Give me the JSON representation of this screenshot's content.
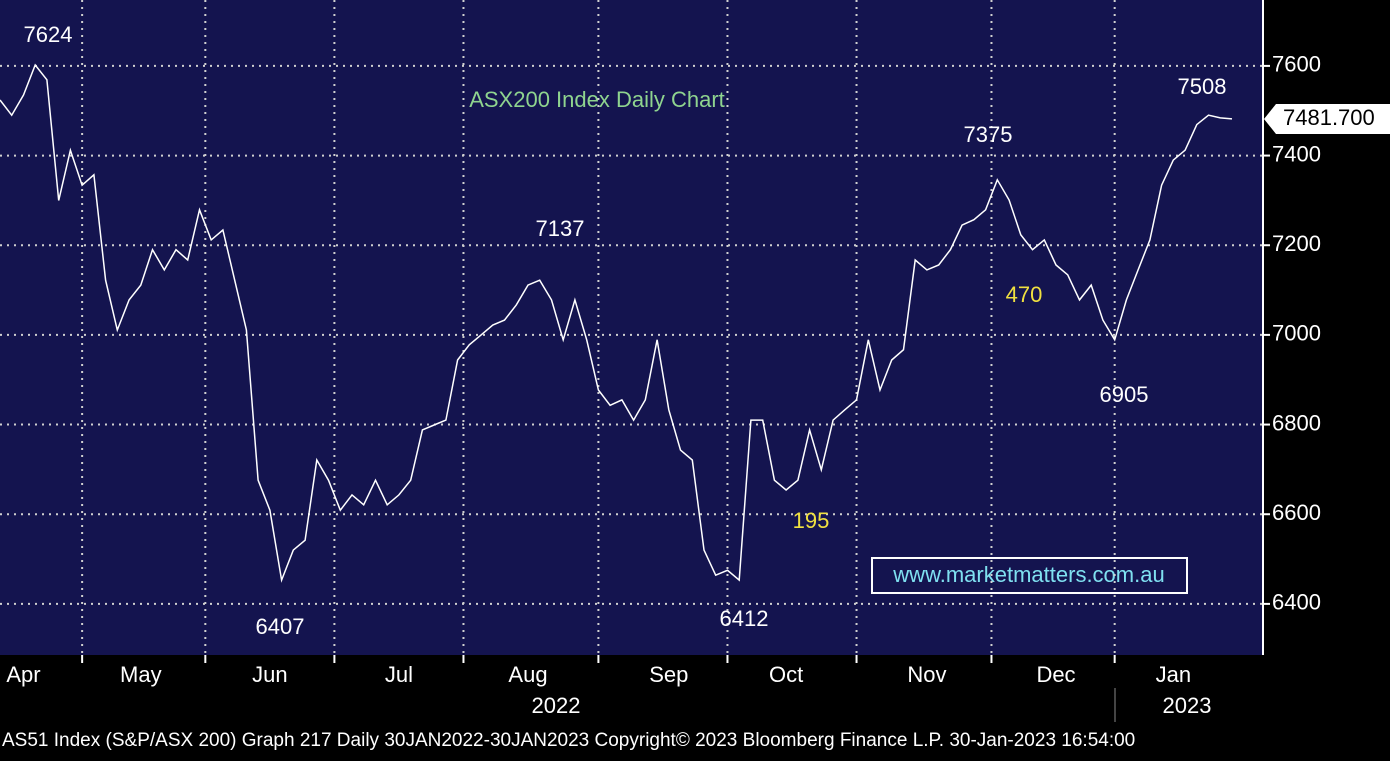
{
  "chart_data": {
    "type": "line",
    "title": "ASX200 Index Daily Chart",
    "categories": [
      null,
      null,
      "Apr",
      null,
      null,
      null,
      null,
      null,
      null,
      null,
      null,
      null,
      "May",
      null,
      null,
      null,
      null,
      null,
      null,
      null,
      null,
      null,
      null,
      "Jun",
      null,
      null,
      null,
      null,
      null,
      null,
      null,
      null,
      null,
      null,
      "Jul",
      null,
      null,
      null,
      null,
      null,
      null,
      null,
      null,
      null,
      null,
      "Aug",
      null,
      null,
      null,
      null,
      null,
      null,
      null,
      null,
      null,
      null,
      null,
      "Sep",
      null,
      null,
      null,
      null,
      null,
      null,
      null,
      null,
      null,
      "Oct",
      null,
      null,
      null,
      null,
      null,
      null,
      null,
      null,
      null,
      null,
      null,
      "Nov",
      null,
      null,
      null,
      null,
      null,
      null,
      null,
      null,
      null,
      null,
      "Dec",
      null,
      null,
      null,
      null,
      null,
      null,
      null,
      null,
      null,
      "Jan",
      null,
      null,
      null,
      null,
      null
    ],
    "series": [
      {
        "name": "AS51 Index",
        "color": "#ffffff",
        "values": [
          7524,
          7490,
          7535,
          7602,
          7569,
          7300,
          7412,
          7334,
          7357,
          7122,
          7011,
          7078,
          7111,
          7190,
          7145,
          7190,
          7167,
          7279,
          7212,
          7234,
          7122,
          7011,
          6676,
          6609,
          6453,
          6520,
          6542,
          6721,
          6676,
          6609,
          6643,
          6621,
          6676,
          6621,
          6643,
          6676,
          6788,
          6799,
          6810,
          6944,
          6978,
          7000,
          7022,
          7033,
          7067,
          7111,
          7122,
          7078,
          6989,
          7078,
          6989,
          6877,
          6843,
          6855,
          6810,
          6855,
          6989,
          6833,
          6743,
          6721,
          6520,
          6464,
          6475,
          6453,
          6810,
          6810,
          6676,
          6654,
          6676,
          6788,
          6699,
          6810,
          6833,
          6855,
          6989,
          6877,
          6944,
          6967,
          7167,
          7145,
          7156,
          7190,
          7245,
          7257,
          7279,
          7346,
          7301,
          7223,
          7190,
          7212,
          7156,
          7134,
          7078,
          7111,
          7033,
          6989,
          7078,
          7145,
          7212,
          7334,
          7390,
          7412,
          7469,
          7490,
          7484,
          7481.7
        ]
      }
    ],
    "ylim": [
      6286,
      7747
    ],
    "yticks": [
      6400,
      6600,
      6800,
      7000,
      7200,
      7400,
      7600
    ],
    "grid": true,
    "last_label": "7481.700",
    "annotations": [
      {
        "text": "7624",
        "color": "#ffffff"
      },
      {
        "text": "6407",
        "color": "#ffffff"
      },
      {
        "text": "7137",
        "color": "#ffffff"
      },
      {
        "text": "6412",
        "color": "#ffffff"
      },
      {
        "text": "195",
        "color": "#f0e040"
      },
      {
        "text": "7375",
        "color": "#ffffff"
      },
      {
        "text": "470",
        "color": "#f0e040"
      },
      {
        "text": "6905",
        "color": "#ffffff"
      },
      {
        "text": "7508",
        "color": "#ffffff"
      }
    ],
    "website": "www.marketmatters.com.au",
    "years": [
      "2022",
      "2023"
    ],
    "footer": "AS51 Index (S&P/ASX 200) Graph 217  Daily 30JAN2022-30JAN2023   Copyright© 2023 Bloomberg Finance L.P.   30-Jan-2023 16:54:00"
  }
}
